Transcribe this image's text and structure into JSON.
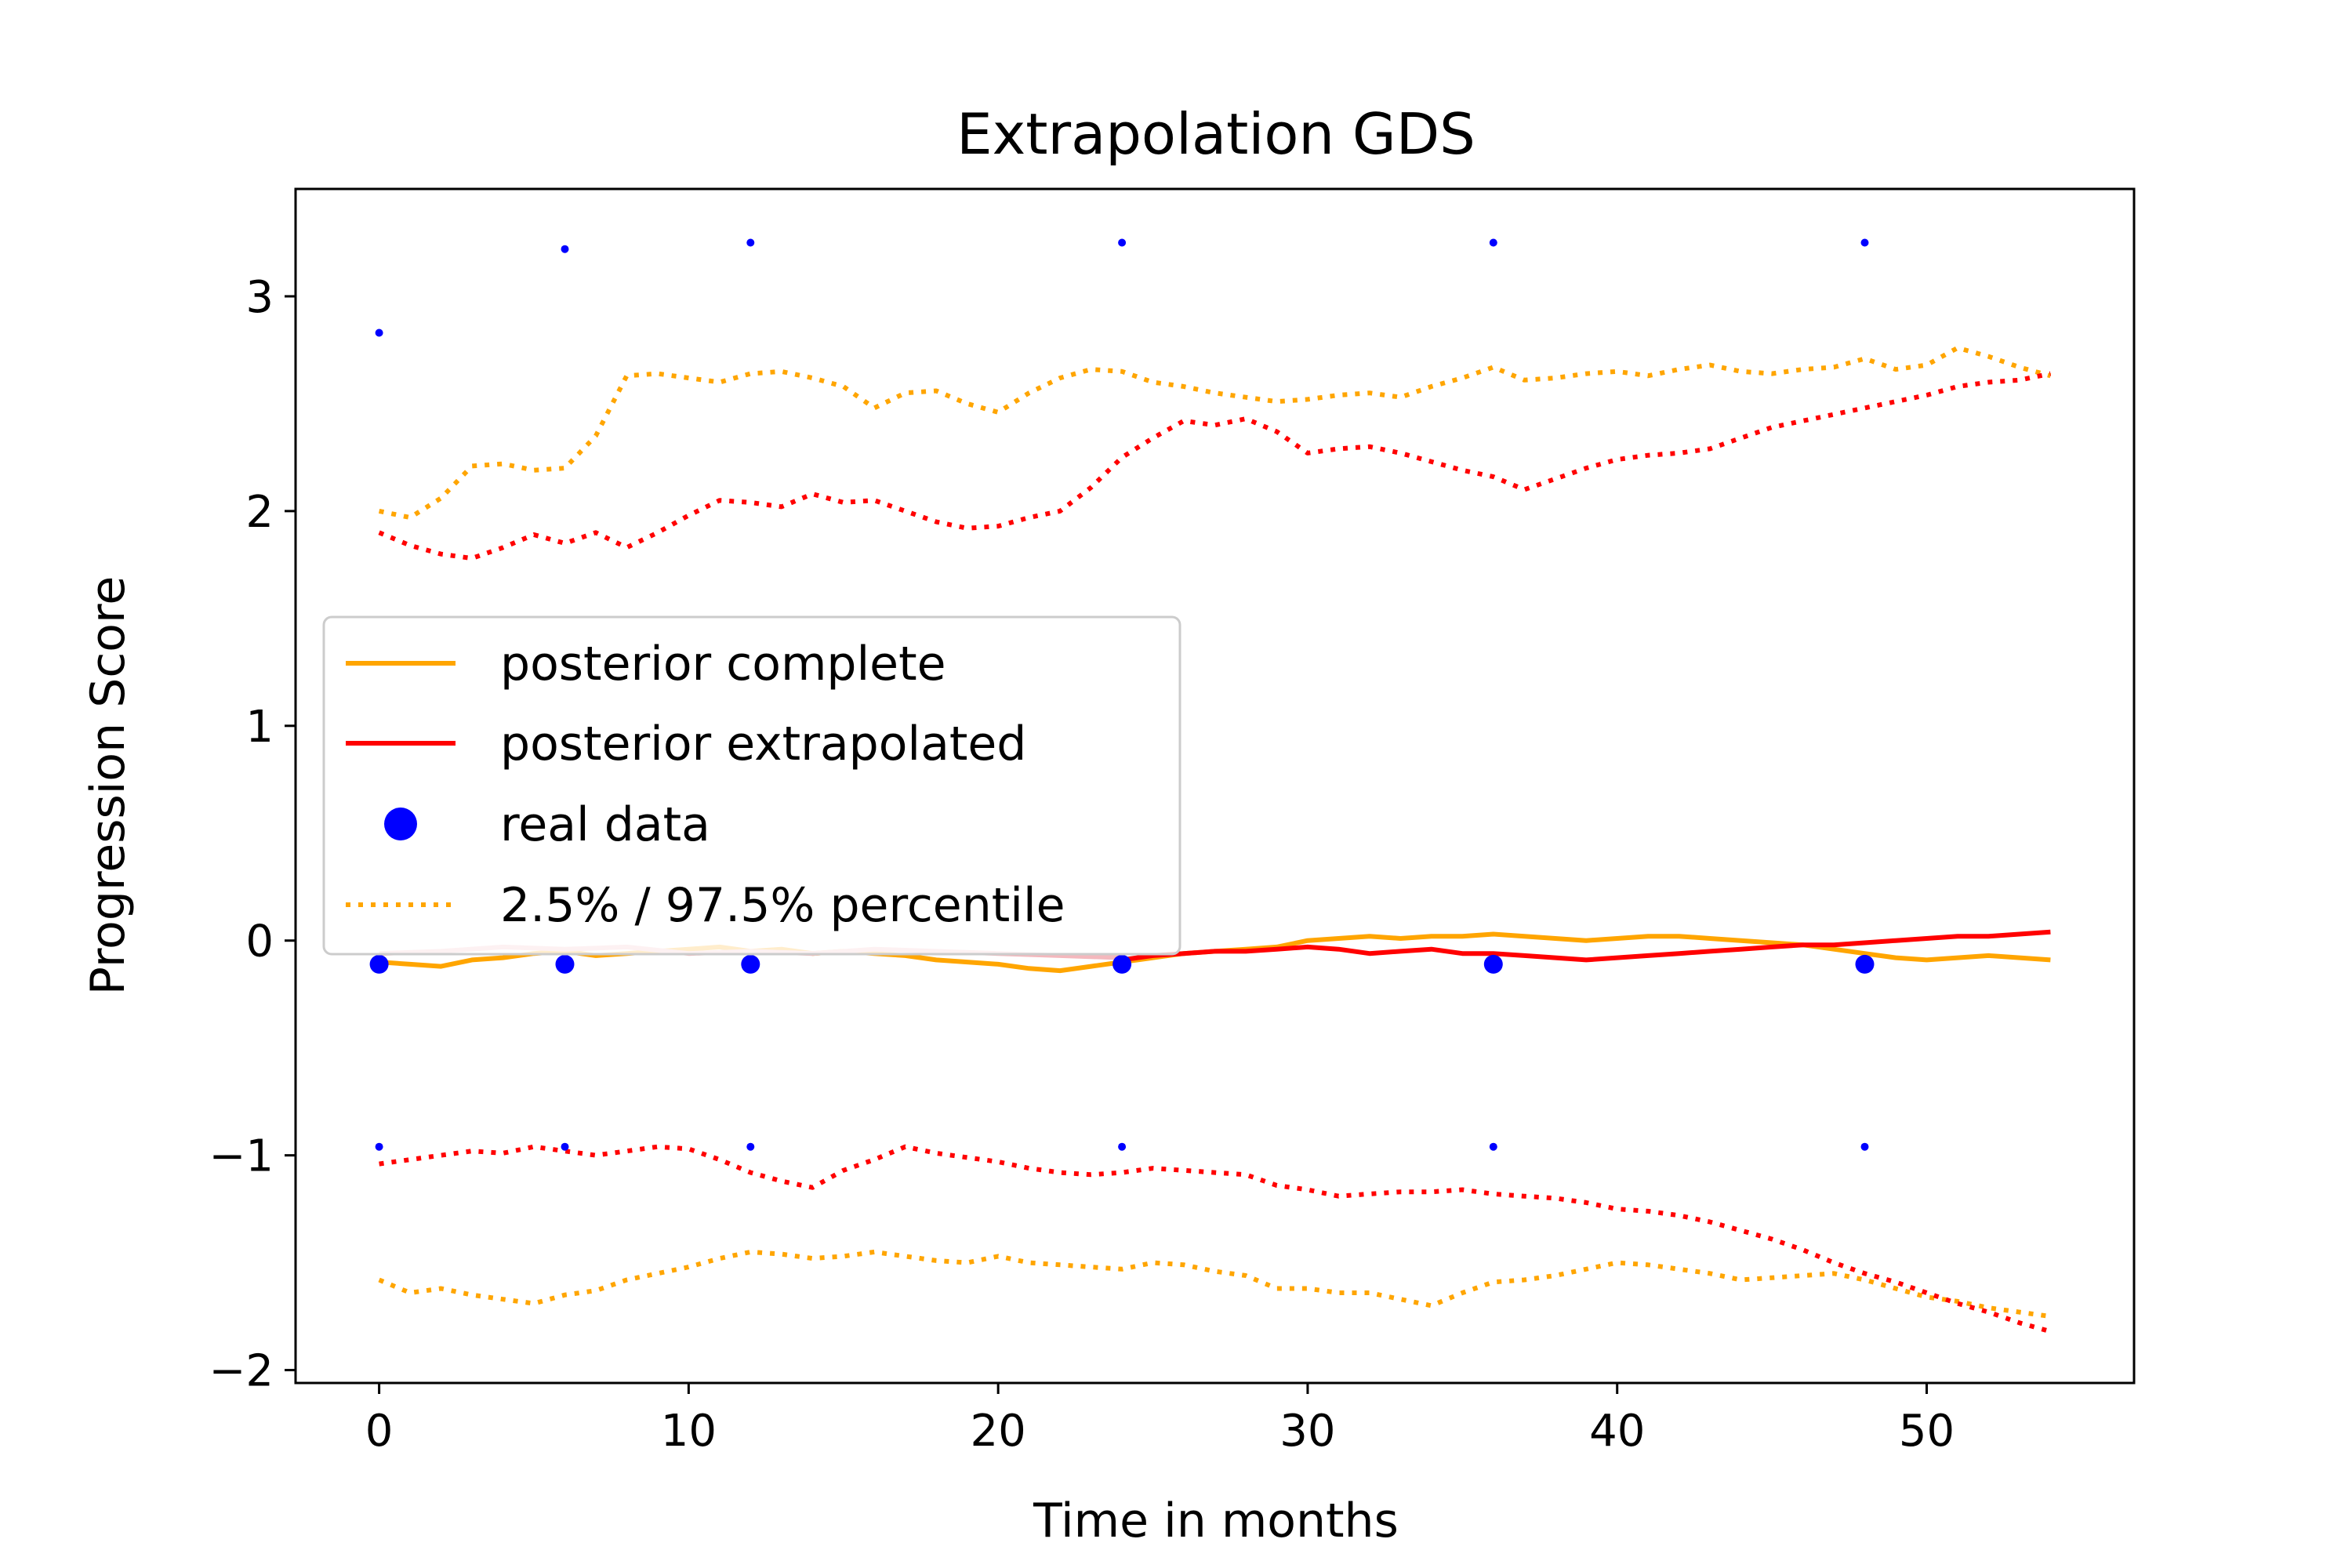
{
  "chart_data": {
    "type": "line",
    "title": "Extrapolation GDS",
    "xlabel": "Time in months",
    "ylabel": "Progression Score",
    "xlim": [
      -2.7,
      56.7
    ],
    "ylim": [
      -2.06,
      3.5
    ],
    "xticks": [
      0,
      10,
      20,
      30,
      40,
      50
    ],
    "yticks": [
      -2,
      -1,
      0,
      1,
      2,
      3
    ],
    "ytick_labels": [
      "−2",
      "−1",
      "0",
      "1",
      "2",
      "3"
    ],
    "grid": false,
    "legend_position": "center-left",
    "legend": [
      {
        "label": "posterior complete",
        "style": "solid",
        "color": "#ffa500"
      },
      {
        "label": "posterior extrapolated",
        "style": "solid",
        "color": "#ff0000"
      },
      {
        "label": "real data",
        "style": "marker",
        "color": "#0000ff"
      },
      {
        "label": "2.5% / 97.5% percentile",
        "style": "dotted",
        "color": "#ffa500"
      }
    ],
    "series": [
      {
        "name": "posterior complete",
        "style": "solid",
        "color": "#ffa500",
        "x": [
          0,
          1,
          2,
          3,
          4,
          5,
          6,
          7,
          8,
          9,
          10,
          11,
          12,
          13,
          14,
          15,
          16,
          17,
          18,
          19,
          20,
          21,
          22,
          23,
          24,
          25,
          26,
          27,
          28,
          29,
          30,
          31,
          32,
          33,
          34,
          35,
          36,
          37,
          38,
          39,
          40,
          41,
          42,
          43,
          44,
          45,
          46,
          47,
          48,
          49,
          50,
          51,
          52,
          53,
          54
        ],
        "y": [
          -0.1,
          -0.11,
          -0.12,
          -0.09,
          -0.08,
          -0.06,
          -0.05,
          -0.07,
          -0.06,
          -0.05,
          -0.04,
          -0.03,
          -0.05,
          -0.04,
          -0.06,
          -0.05,
          -0.06,
          -0.07,
          -0.09,
          -0.1,
          -0.11,
          -0.13,
          -0.14,
          -0.12,
          -0.1,
          -0.08,
          -0.06,
          -0.05,
          -0.04,
          -0.03,
          0.0,
          0.01,
          0.02,
          0.01,
          0.02,
          0.02,
          0.03,
          0.02,
          0.01,
          0.0,
          0.01,
          0.02,
          0.02,
          0.01,
          0.0,
          -0.01,
          -0.02,
          -0.04,
          -0.06,
          -0.08,
          -0.09,
          -0.08,
          -0.07,
          -0.08,
          -0.09
        ]
      },
      {
        "name": "posterior extrapolated",
        "style": "solid",
        "color": "#ff0000",
        "x": [
          24,
          25,
          26,
          27,
          28,
          29,
          30,
          31,
          32,
          33,
          34,
          35,
          36,
          37,
          38,
          39,
          40,
          41,
          42,
          43,
          44,
          45,
          46,
          47,
          48,
          49,
          50,
          51,
          52,
          53,
          54
        ],
        "y": [
          -0.09,
          -0.07,
          -0.06,
          -0.05,
          -0.05,
          -0.04,
          -0.03,
          -0.04,
          -0.06,
          -0.05,
          -0.04,
          -0.06,
          -0.06,
          -0.07,
          -0.08,
          -0.09,
          -0.08,
          -0.07,
          -0.06,
          -0.05,
          -0.04,
          -0.03,
          -0.02,
          -0.02,
          -0.01,
          0.0,
          0.01,
          0.02,
          0.02,
          0.03,
          0.04
        ]
      },
      {
        "name": "posterior extrapolated (faded early part)",
        "style": "solid",
        "color": "#f4b8bd",
        "x": [
          0,
          2,
          4,
          6,
          8,
          10,
          12,
          14,
          16,
          18,
          20,
          22,
          24
        ],
        "y": [
          -0.06,
          -0.05,
          -0.03,
          -0.04,
          -0.03,
          -0.06,
          -0.05,
          -0.06,
          -0.04,
          -0.05,
          -0.06,
          -0.07,
          -0.08
        ]
      },
      {
        "name": "upper percentile complete",
        "style": "dotted",
        "color": "#ffa500",
        "x": [
          0,
          1,
          2,
          3,
          4,
          5,
          6,
          7,
          8,
          9,
          10,
          11,
          12,
          13,
          14,
          15,
          16,
          17,
          18,
          19,
          20,
          21,
          22,
          23,
          24,
          25,
          26,
          27,
          28,
          29,
          30,
          31,
          32,
          33,
          34,
          35,
          36,
          37,
          38,
          39,
          40,
          41,
          42,
          43,
          44,
          45,
          46,
          47,
          48,
          49,
          50,
          51,
          52,
          53,
          54
        ],
        "y": [
          2.0,
          1.97,
          2.06,
          2.21,
          2.22,
          2.19,
          2.2,
          2.35,
          2.63,
          2.64,
          2.62,
          2.6,
          2.64,
          2.65,
          2.62,
          2.58,
          2.48,
          2.55,
          2.56,
          2.5,
          2.46,
          2.55,
          2.62,
          2.66,
          2.65,
          2.6,
          2.58,
          2.55,
          2.53,
          2.51,
          2.52,
          2.54,
          2.55,
          2.53,
          2.58,
          2.62,
          2.67,
          2.61,
          2.62,
          2.64,
          2.65,
          2.63,
          2.66,
          2.68,
          2.65,
          2.64,
          2.66,
          2.67,
          2.71,
          2.66,
          2.68,
          2.76,
          2.72,
          2.67,
          2.63
        ]
      },
      {
        "name": "lower percentile complete",
        "style": "dotted",
        "color": "#ffa500",
        "x": [
          0,
          1,
          2,
          3,
          4,
          5,
          6,
          7,
          8,
          9,
          10,
          11,
          12,
          13,
          14,
          15,
          16,
          17,
          18,
          19,
          20,
          21,
          22,
          23,
          24,
          25,
          26,
          27,
          28,
          29,
          30,
          31,
          32,
          33,
          34,
          35,
          36,
          37,
          38,
          39,
          40,
          41,
          42,
          43,
          44,
          45,
          46,
          47,
          48,
          49,
          50,
          51,
          52,
          53,
          54
        ],
        "y": [
          -1.58,
          -1.64,
          -1.62,
          -1.65,
          -1.67,
          -1.69,
          -1.65,
          -1.63,
          -1.58,
          -1.55,
          -1.52,
          -1.48,
          -1.45,
          -1.46,
          -1.48,
          -1.47,
          -1.45,
          -1.47,
          -1.49,
          -1.5,
          -1.47,
          -1.5,
          -1.51,
          -1.52,
          -1.53,
          -1.5,
          -1.51,
          -1.54,
          -1.56,
          -1.62,
          -1.62,
          -1.64,
          -1.64,
          -1.67,
          -1.7,
          -1.64,
          -1.59,
          -1.58,
          -1.56,
          -1.53,
          -1.5,
          -1.51,
          -1.53,
          -1.55,
          -1.58,
          -1.57,
          -1.56,
          -1.55,
          -1.58,
          -1.62,
          -1.66,
          -1.68,
          -1.71,
          -1.73,
          -1.75
        ]
      },
      {
        "name": "upper percentile extrapolated",
        "style": "dotted",
        "color": "#ff0000",
        "x": [
          0,
          1,
          2,
          3,
          4,
          5,
          6,
          7,
          8,
          9,
          10,
          11,
          12,
          13,
          14,
          15,
          16,
          17,
          18,
          19,
          20,
          21,
          22,
          23,
          24,
          25,
          26,
          27,
          28,
          29,
          30,
          31,
          32,
          33,
          34,
          35,
          36,
          37,
          38,
          39,
          40,
          41,
          42,
          43,
          44,
          45,
          46,
          47,
          48,
          49,
          50,
          51,
          52,
          53,
          54
        ],
        "y": [
          1.9,
          1.84,
          1.8,
          1.78,
          1.83,
          1.89,
          1.85,
          1.9,
          1.83,
          1.9,
          1.98,
          2.05,
          2.04,
          2.02,
          2.08,
          2.04,
          2.05,
          2.0,
          1.95,
          1.92,
          1.93,
          1.97,
          2.0,
          2.11,
          2.25,
          2.34,
          2.42,
          2.4,
          2.43,
          2.37,
          2.27,
          2.29,
          2.3,
          2.27,
          2.23,
          2.19,
          2.16,
          2.1,
          2.15,
          2.2,
          2.24,
          2.26,
          2.27,
          2.29,
          2.34,
          2.39,
          2.42,
          2.45,
          2.48,
          2.51,
          2.54,
          2.58,
          2.6,
          2.61,
          2.64
        ]
      },
      {
        "name": "lower percentile extrapolated",
        "style": "dotted",
        "color": "#ff0000",
        "x": [
          0,
          1,
          2,
          3,
          4,
          5,
          6,
          7,
          8,
          9,
          10,
          11,
          12,
          13,
          14,
          15,
          16,
          17,
          18,
          19,
          20,
          21,
          22,
          23,
          24,
          25,
          26,
          27,
          28,
          29,
          30,
          31,
          32,
          33,
          34,
          35,
          36,
          37,
          38,
          39,
          40,
          41,
          42,
          43,
          44,
          45,
          46,
          47,
          48,
          49,
          50,
          51,
          52,
          53,
          54
        ],
        "y": [
          -1.04,
          -1.02,
          -1.0,
          -0.98,
          -0.99,
          -0.96,
          -0.98,
          -1.0,
          -0.98,
          -0.96,
          -0.97,
          -1.02,
          -1.08,
          -1.12,
          -1.15,
          -1.07,
          -1.02,
          -0.96,
          -0.99,
          -1.01,
          -1.03,
          -1.06,
          -1.08,
          -1.09,
          -1.08,
          -1.06,
          -1.07,
          -1.08,
          -1.09,
          -1.14,
          -1.16,
          -1.19,
          -1.18,
          -1.17,
          -1.17,
          -1.16,
          -1.18,
          -1.19,
          -1.2,
          -1.22,
          -1.25,
          -1.26,
          -1.28,
          -1.31,
          -1.35,
          -1.39,
          -1.44,
          -1.5,
          -1.55,
          -1.59,
          -1.64,
          -1.69,
          -1.73,
          -1.78,
          -1.82
        ]
      },
      {
        "name": "real data",
        "style": "marker",
        "color": "#0000ff",
        "marker_size": 12,
        "x": [
          0,
          6,
          12,
          24,
          36,
          48
        ],
        "y": [
          -0.11,
          -0.11,
          -0.11,
          -0.11,
          -0.11,
          -0.11
        ]
      },
      {
        "name": "real data upper",
        "style": "marker",
        "color": "#0000ff",
        "marker_size": 5,
        "x": [
          0,
          6,
          12,
          24,
          36,
          48
        ],
        "y": [
          2.83,
          3.22,
          3.25,
          3.25,
          3.25,
          3.25
        ]
      },
      {
        "name": "real data lower",
        "style": "marker",
        "color": "#0000ff",
        "marker_size": 5,
        "x": [
          0,
          6,
          12,
          24,
          36,
          48
        ],
        "y": [
          -0.96,
          -0.96,
          -0.96,
          -0.96,
          -0.96,
          -0.96
        ]
      }
    ]
  }
}
